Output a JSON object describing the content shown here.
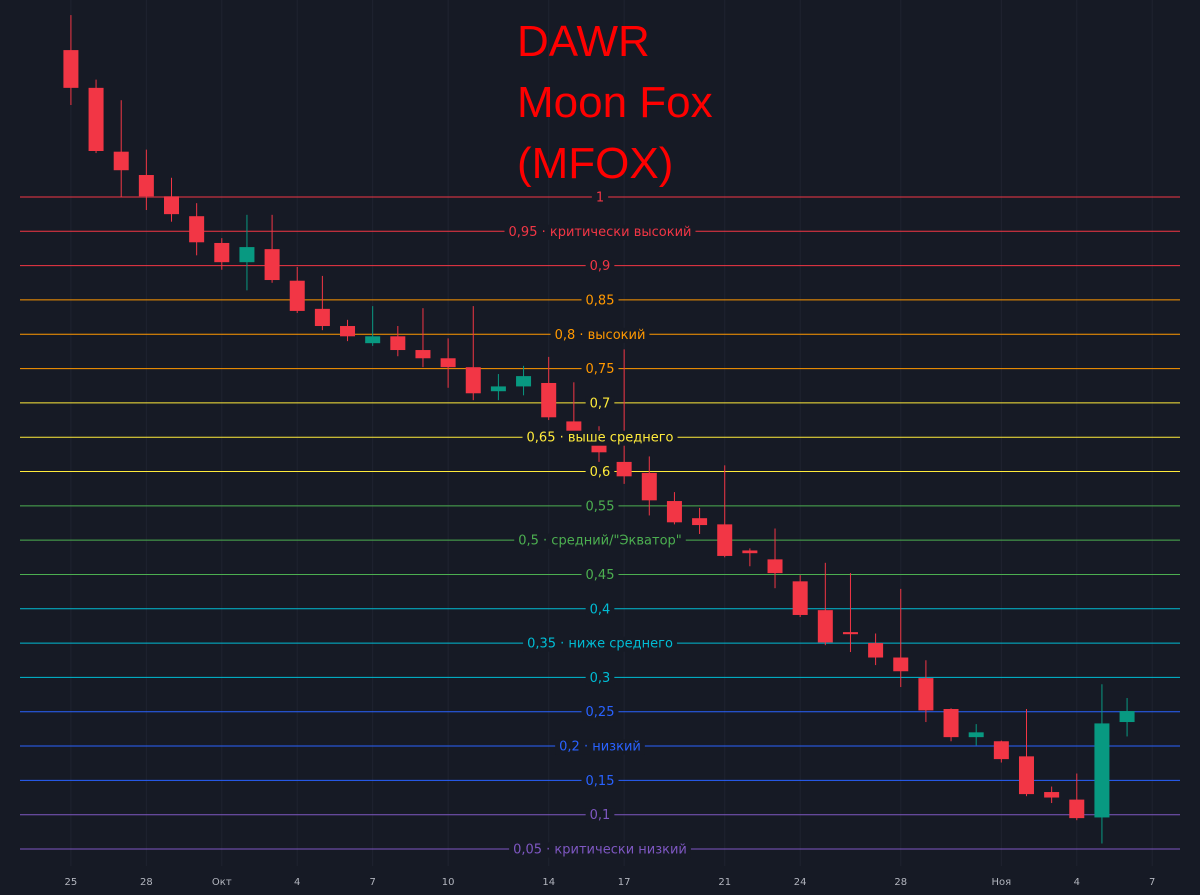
{
  "chart_data": {
    "type": "candlestick",
    "title": [
      "DAWR",
      "Moon Fox",
      "(MFOX)"
    ],
    "up_color": "#089981",
    "down_color": "#f23645",
    "open": [
      1.214,
      1.159,
      1.066,
      1.032,
      1.001,
      0.972,
      0.933,
      0.905,
      0.924,
      0.878,
      0.837,
      0.812,
      0.787,
      0.797,
      0.777,
      0.765,
      0.752,
      0.717,
      0.724,
      0.729,
      0.673,
      0.652,
      0.614,
      0.598,
      0.557,
      0.532,
      0.523,
      0.485,
      0.472,
      0.44,
      0.398,
      0.366,
      0.35,
      0.329,
      0.299,
      0.254,
      0.213,
      0.207,
      0.185,
      0.133,
      0.122,
      0.096,
      0.235
    ],
    "high": [
      1.265,
      1.171,
      1.141,
      1.069,
      1.028,
      0.991,
      0.94,
      0.974,
      0.974,
      0.898,
      0.885,
      0.821,
      0.841,
      0.812,
      0.838,
      0.794,
      0.841,
      0.742,
      0.754,
      0.767,
      0.73,
      0.666,
      0.778,
      0.622,
      0.57,
      0.547,
      0.609,
      0.488,
      0.517,
      0.449,
      0.467,
      0.452,
      0.364,
      0.429,
      0.325,
      0.255,
      0.232,
      0.208,
      0.254,
      0.141,
      0.16,
      0.29,
      0.27
    ],
    "low": [
      1.134,
      1.064,
      1.0,
      0.981,
      0.964,
      0.915,
      0.894,
      0.864,
      0.875,
      0.831,
      0.806,
      0.79,
      0.783,
      0.768,
      0.752,
      0.722,
      0.704,
      0.704,
      0.711,
      0.675,
      0.638,
      0.614,
      0.582,
      0.536,
      0.523,
      0.509,
      0.475,
      0.462,
      0.43,
      0.388,
      0.347,
      0.337,
      0.318,
      0.286,
      0.235,
      0.207,
      0.201,
      0.176,
      0.127,
      0.117,
      0.092,
      0.058,
      0.214
    ],
    "close": [
      1.159,
      1.067,
      1.039,
      1.001,
      0.975,
      0.934,
      0.905,
      0.927,
      0.879,
      0.834,
      0.812,
      0.797,
      0.797,
      0.777,
      0.765,
      0.752,
      0.714,
      0.724,
      0.739,
      0.679,
      0.652,
      0.628,
      0.593,
      0.558,
      0.526,
      0.522,
      0.477,
      0.481,
      0.452,
      0.391,
      0.351,
      0.363,
      0.329,
      0.309,
      0.252,
      0.213,
      0.22,
      0.181,
      0.13,
      0.125,
      0.095,
      0.233,
      0.251
    ],
    "xlim": [
      -2.82,
      44.9
    ],
    "xticks": [
      {
        "value": 0,
        "label": "25"
      },
      {
        "value": 3,
        "label": "28"
      },
      {
        "value": 6,
        "label": "Окт"
      },
      {
        "value": 9,
        "label": "4"
      },
      {
        "value": 12,
        "label": "7"
      },
      {
        "value": 15,
        "label": "10"
      },
      {
        "value": 19,
        "label": "14"
      },
      {
        "value": 22,
        "label": "17"
      },
      {
        "value": 26,
        "label": "21"
      },
      {
        "value": 29,
        "label": "24"
      },
      {
        "value": 33,
        "label": "28"
      },
      {
        "value": 37,
        "label": "Ноя"
      },
      {
        "value": 40,
        "label": "4"
      },
      {
        "value": 43,
        "label": "7"
      }
    ],
    "ylim": [
      -0.017,
      1.287
    ],
    "levels": [
      {
        "value": 1,
        "label": "1",
        "color": "#f23645"
      },
      {
        "value": 0.95,
        "label": "0,95 · критически высокий",
        "color": "#f23645"
      },
      {
        "value": 0.9,
        "label": "0,9",
        "color": "#f23645"
      },
      {
        "value": 0.85,
        "label": "0,85",
        "color": "#ff9800"
      },
      {
        "value": 0.8,
        "label": "0,8 · высокий",
        "color": "#ff9800"
      },
      {
        "value": 0.75,
        "label": "0,75",
        "color": "#ff9800"
      },
      {
        "value": 0.7,
        "label": "0,7",
        "color": "#ffeb3b"
      },
      {
        "value": 0.65,
        "label": "0,65 · выше среднего",
        "color": "#ffeb3b"
      },
      {
        "value": 0.6,
        "label": "0,6",
        "color": "#ffeb3b"
      },
      {
        "value": 0.55,
        "label": "0,55",
        "color": "#4caf50"
      },
      {
        "value": 0.5,
        "label": "0,5 · средний/\"Экватор\"",
        "color": "#4caf50"
      },
      {
        "value": 0.45,
        "label": "0,45",
        "color": "#4caf50"
      },
      {
        "value": 0.4,
        "label": "0,4",
        "color": "#00bcd4"
      },
      {
        "value": 0.35,
        "label": "0,35 · ниже среднего",
        "color": "#00bcd4"
      },
      {
        "value": 0.3,
        "label": "0,3",
        "color": "#00bcd4"
      },
      {
        "value": 0.25,
        "label": "0,25",
        "color": "#2962ff"
      },
      {
        "value": 0.2,
        "label": "0,2 · низкий",
        "color": "#2962ff"
      },
      {
        "value": 0.15,
        "label": "0,15",
        "color": "#2962ff"
      },
      {
        "value": 0.1,
        "label": "0,1",
        "color": "#7e57c2"
      },
      {
        "value": 0.05,
        "label": "0,05 · критически низкий",
        "color": "#7e57c2"
      }
    ],
    "grid": true
  }
}
